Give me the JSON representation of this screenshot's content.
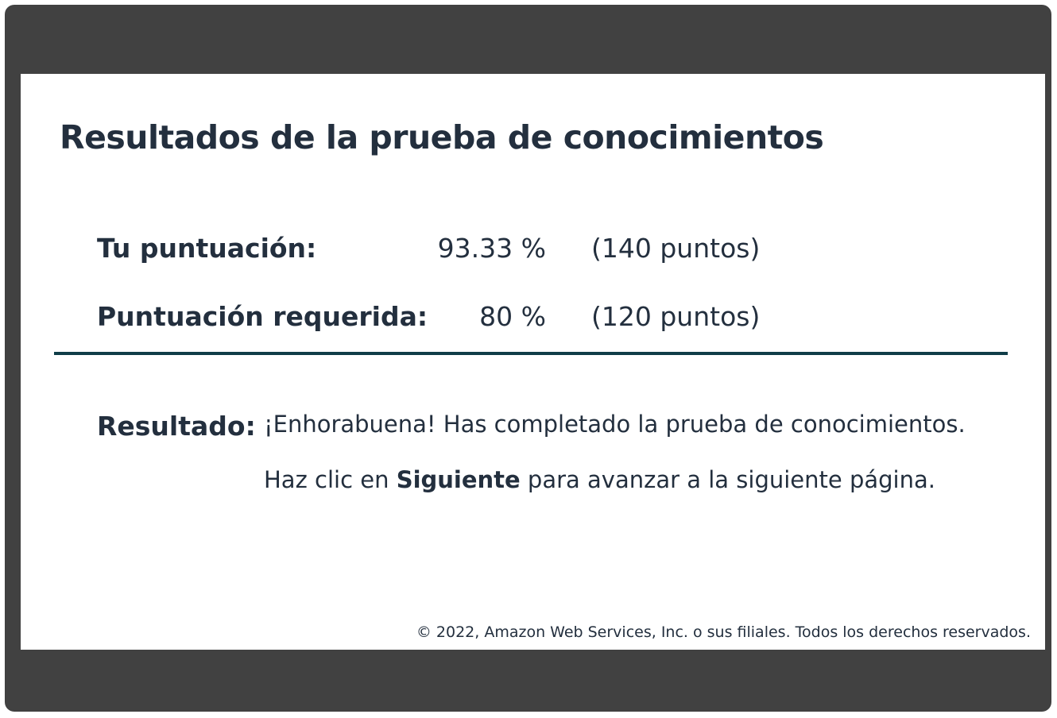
{
  "title": "Resultados de la prueba de conocimientos",
  "score": {
    "label": "Tu puntuación:",
    "percent": "93.33 %",
    "points": "(140 puntos)"
  },
  "required": {
    "label": "Puntuación requerida:",
    "percent": "80 %",
    "points": "(120 puntos)"
  },
  "result": {
    "label": "Resultado:",
    "message": "¡Enhorabuena! Has completado la prueba de conocimientos.",
    "next_prefix": "Haz clic en ",
    "next_bold": "Siguiente",
    "next_suffix": " para avanzar a la siguiente página."
  },
  "footer": {
    "copyright": "© 2022, Amazon Web Services, Inc. o sus filiales. Todos los derechos reservados."
  },
  "colors": {
    "frame": "#414141",
    "text": "#232f3e",
    "divider": "#0f3d48"
  }
}
